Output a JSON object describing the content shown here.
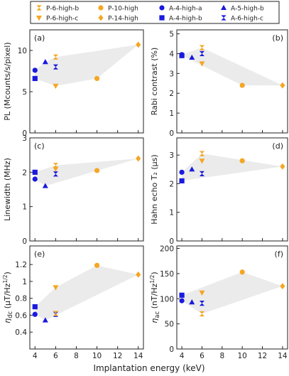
{
  "colors": {
    "orange": "#f5a623",
    "blue": "#1a1adf",
    "band": "#ebebeb"
  },
  "legend": [
    {
      "label": "P-6-high-b",
      "marker": "hourglass",
      "color": "#f5a623"
    },
    {
      "label": "P-10-high",
      "marker": "circle",
      "color": "#f5a623"
    },
    {
      "label": "A-4-high-a",
      "marker": "circle",
      "color": "#1a1adf"
    },
    {
      "label": "A-5-high-b",
      "marker": "triangle",
      "color": "#1a1adf"
    },
    {
      "label": "P-6-high-c",
      "marker": "triangle-down",
      "color": "#f5a623"
    },
    {
      "label": "P-14-high",
      "marker": "diamond",
      "color": "#f5a623"
    },
    {
      "label": "A-4-high-b",
      "marker": "square",
      "color": "#1a1adf"
    },
    {
      "label": "A-6-high-c",
      "marker": "hourglass",
      "color": "#1a1adf"
    }
  ],
  "xlabel": "Implantation energy (keV)",
  "chart_data": [
    {
      "type": "scatter",
      "panel": "(a)",
      "ylabel": "PL (Mcounts/s/pixel)",
      "xlim": [
        3.5,
        14.5
      ],
      "ylim": [
        0,
        12.5
      ],
      "yticks": [
        0,
        5,
        10
      ],
      "xticks": [
        4,
        6,
        8,
        10,
        12,
        14
      ],
      "points": [
        {
          "series": "A-4-high-a",
          "x": 4,
          "y": 7.6
        },
        {
          "series": "A-4-high-b",
          "x": 4,
          "y": 6.6
        },
        {
          "series": "A-5-high-b",
          "x": 5,
          "y": 8.6
        },
        {
          "series": "A-6-high-c",
          "x": 6,
          "y": 8.0
        },
        {
          "series": "P-6-high-b",
          "x": 6,
          "y": 9.2
        },
        {
          "series": "P-6-high-c",
          "x": 6,
          "y": 5.7
        },
        {
          "series": "P-10-high",
          "x": 10,
          "y": 6.6
        },
        {
          "series": "P-14-high",
          "x": 14,
          "y": 10.7
        }
      ]
    },
    {
      "type": "scatter",
      "panel": "(b)",
      "ylabel": "Rabi contrast (%)",
      "xlim": [
        3.5,
        14.5
      ],
      "ylim": [
        0,
        5.2
      ],
      "yticks": [
        0,
        1,
        2,
        3,
        4,
        5
      ],
      "xticks": [
        4,
        6,
        8,
        10,
        12,
        14
      ],
      "points": [
        {
          "series": "A-4-high-a",
          "x": 4,
          "y": 3.95
        },
        {
          "series": "A-4-high-b",
          "x": 4,
          "y": 3.9
        },
        {
          "series": "A-5-high-b",
          "x": 5,
          "y": 3.8
        },
        {
          "series": "A-6-high-c",
          "x": 6,
          "y": 4.0
        },
        {
          "series": "P-6-high-b",
          "x": 6,
          "y": 4.3
        },
        {
          "series": "P-6-high-c",
          "x": 6,
          "y": 3.5
        },
        {
          "series": "P-10-high",
          "x": 10,
          "y": 2.4
        },
        {
          "series": "P-14-high",
          "x": 14,
          "y": 2.4
        }
      ]
    },
    {
      "type": "scatter",
      "panel": "(c)",
      "ylabel": "Linewidth (MHz)",
      "xlim": [
        3.5,
        14.5
      ],
      "ylim": [
        0,
        3.0
      ],
      "yticks": [
        0,
        1,
        2,
        3
      ],
      "xticks": [
        4,
        6,
        8,
        10,
        12,
        14
      ],
      "points": [
        {
          "series": "A-4-high-a",
          "x": 4,
          "y": 1.8
        },
        {
          "series": "A-4-high-b",
          "x": 4,
          "y": 2.0
        },
        {
          "series": "A-5-high-b",
          "x": 5,
          "y": 1.6
        },
        {
          "series": "A-6-high-c",
          "x": 6,
          "y": 1.95
        },
        {
          "series": "P-6-high-b",
          "x": 6,
          "y": 2.2
        },
        {
          "series": "P-6-high-c",
          "x": 6,
          "y": 2.1
        },
        {
          "series": "P-10-high",
          "x": 10,
          "y": 2.05
        },
        {
          "series": "P-14-high",
          "x": 14,
          "y": 2.4
        }
      ]
    },
    {
      "type": "scatter",
      "panel": "(d)",
      "ylabel": "Hahn echo T₂ (µs)",
      "xlim": [
        3.5,
        14.5
      ],
      "ylim": [
        0,
        3.6
      ],
      "yticks": [
        0,
        1,
        2,
        3
      ],
      "xticks": [
        4,
        6,
        8,
        10,
        12,
        14
      ],
      "points": [
        {
          "series": "A-4-high-a",
          "x": 4,
          "y": 2.4
        },
        {
          "series": "A-4-high-b",
          "x": 4,
          "y": 2.1
        },
        {
          "series": "A-5-high-b",
          "x": 5,
          "y": 2.5
        },
        {
          "series": "A-6-high-c",
          "x": 6,
          "y": 2.35
        },
        {
          "series": "P-6-high-b",
          "x": 6,
          "y": 3.05
        },
        {
          "series": "P-6-high-c",
          "x": 6,
          "y": 2.8
        },
        {
          "series": "P-10-high",
          "x": 10,
          "y": 2.8
        },
        {
          "series": "P-14-high",
          "x": 14,
          "y": 2.6
        }
      ]
    },
    {
      "type": "scatter",
      "panel": "(e)",
      "ylabel": "η_dc (µT/Hz^1/2)",
      "xlim": [
        3.5,
        14.5
      ],
      "ylim": [
        0.2,
        1.42
      ],
      "yticks": [
        0.4,
        0.6,
        0.8,
        1.0,
        1.2
      ],
      "xticks": [
        4,
        6,
        8,
        10,
        12,
        14
      ],
      "points": [
        {
          "series": "A-4-high-a",
          "x": 4,
          "y": 0.61
        },
        {
          "series": "A-4-high-b",
          "x": 4,
          "y": 0.7
        },
        {
          "series": "A-5-high-b",
          "x": 5,
          "y": 0.54
        },
        {
          "series": "A-6-high-c",
          "x": 6,
          "y": 0.61
        },
        {
          "series": "P-6-high-b",
          "x": 6,
          "y": 0.62
        },
        {
          "series": "P-6-high-c",
          "x": 6,
          "y": 0.93
        },
        {
          "series": "P-10-high",
          "x": 10,
          "y": 1.19
        },
        {
          "series": "P-14-high",
          "x": 14,
          "y": 1.08
        }
      ]
    },
    {
      "type": "scatter",
      "panel": "(f)",
      "ylabel": "η_ac (nT/Hz^1/2)",
      "xlim": [
        3.5,
        14.5
      ],
      "ylim": [
        0,
        205
      ],
      "yticks": [
        0,
        50,
        100,
        150,
        200
      ],
      "xticks": [
        4,
        6,
        8,
        10,
        12,
        14
      ],
      "points": [
        {
          "series": "A-4-high-a",
          "x": 4,
          "y": 96
        },
        {
          "series": "A-4-high-b",
          "x": 4,
          "y": 107
        },
        {
          "series": "A-5-high-b",
          "x": 5,
          "y": 93
        },
        {
          "series": "A-6-high-c",
          "x": 6,
          "y": 91
        },
        {
          "series": "P-6-high-b",
          "x": 6,
          "y": 70
        },
        {
          "series": "P-6-high-c",
          "x": 6,
          "y": 112
        },
        {
          "series": "P-10-high",
          "x": 10,
          "y": 153
        },
        {
          "series": "P-14-high",
          "x": 14,
          "y": 125
        }
      ]
    }
  ]
}
